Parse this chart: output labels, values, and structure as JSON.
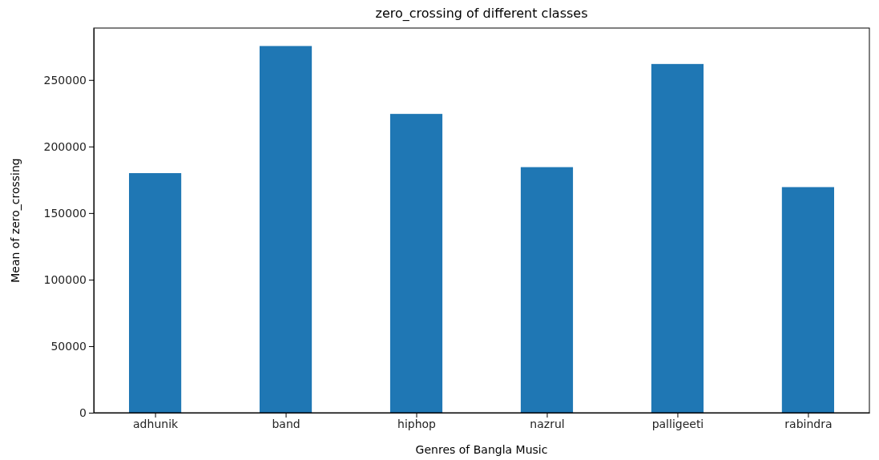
{
  "chart_data": {
    "type": "bar",
    "title": "zero_crossing of different classes",
    "xlabel": "Genres of Bangla Music",
    "ylabel": "Mean of zero_crossing",
    "categories": [
      "adhunik",
      "band",
      "hiphop",
      "nazrul",
      "palligeeti",
      "rabindra"
    ],
    "values": [
      180000,
      275500,
      224500,
      184500,
      262000,
      169500
    ],
    "color": "#1f77b4",
    "ylim": [
      0,
      289000
    ],
    "yticks": [
      0,
      50000,
      100000,
      150000,
      200000,
      250000
    ],
    "grid": false
  }
}
